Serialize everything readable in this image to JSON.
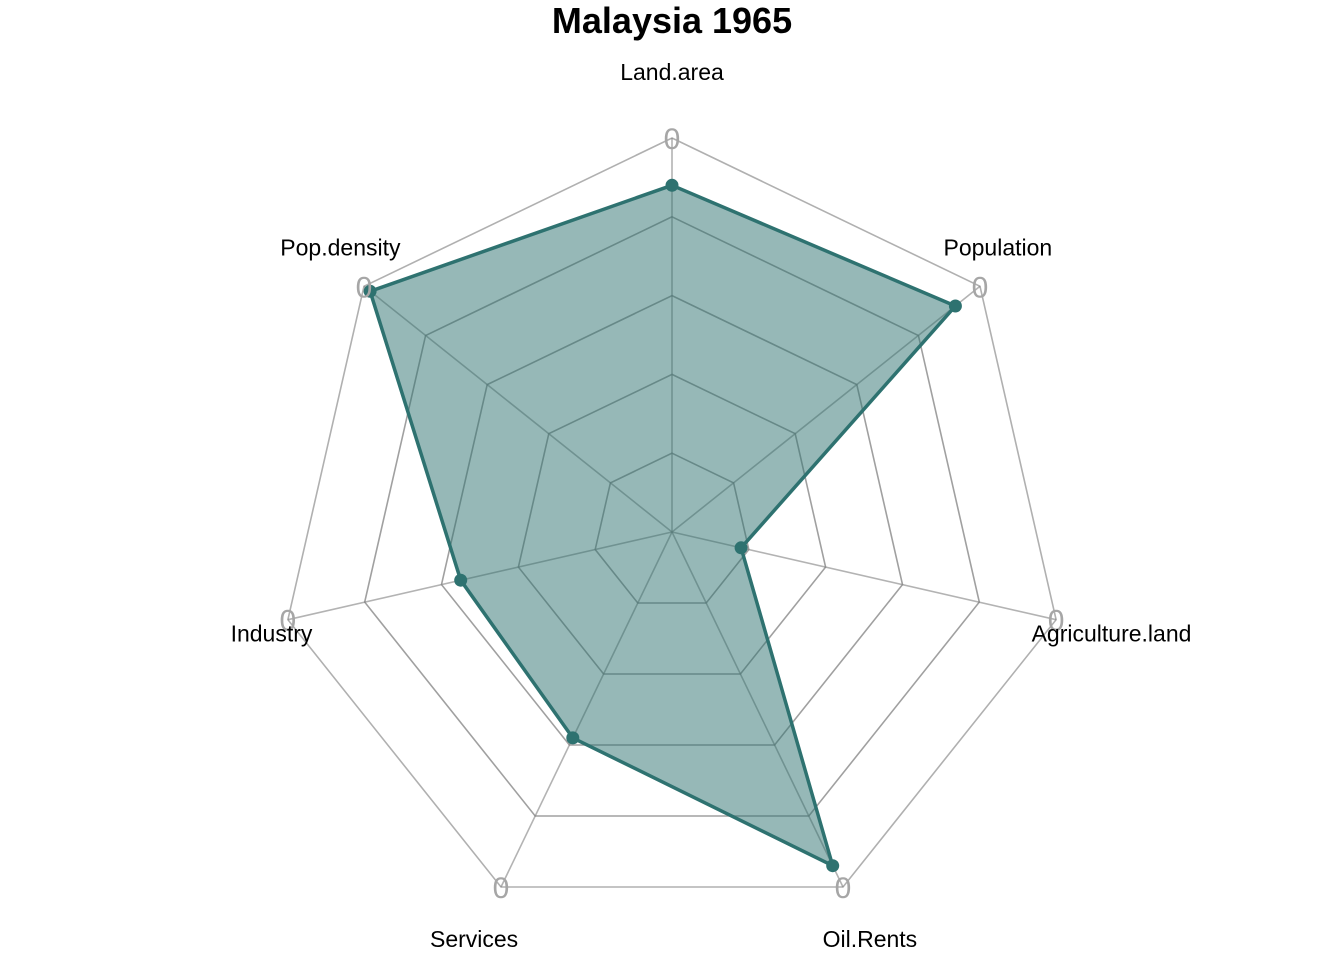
{
  "chart_data": {
    "type": "radar",
    "title": "Malaysia 1965",
    "axes": [
      "Land.area",
      "Population",
      "Agriculture.land",
      "Oil.Rents",
      "Services",
      "Industry",
      "Pop.density"
    ],
    "axis_max_labels": [
      "0",
      "0",
      "0",
      "0",
      "0",
      "0",
      "0"
    ],
    "rlim": [
      0,
      1
    ],
    "grid_levels": 5,
    "series": [
      {
        "values": [
          0.88,
          0.92,
          0.18,
          0.94,
          0.58,
          0.55,
          0.98
        ]
      }
    ],
    "colors": {
      "series_line": "#2e7270",
      "series_fill": "#2e7270",
      "grid_outer": "#b0b0b0",
      "grid_inner": "#808080",
      "tick_label": "#a6a6a6"
    }
  }
}
